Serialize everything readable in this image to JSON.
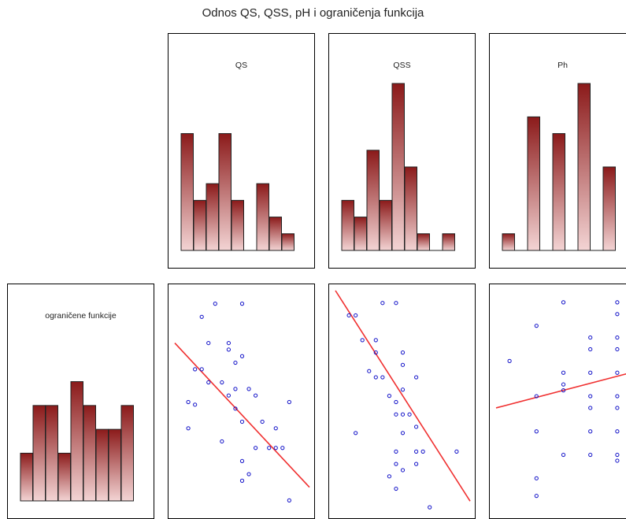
{
  "title": "Odnos QS, QSS, pH i ograničenja funkcija",
  "colors": {
    "bar_top": "#8b1a1a",
    "bar_bottom": "#f3d4d4",
    "points": "#1010c8",
    "fit_line": "#f03030"
  },
  "chart_data": [
    {
      "type": "bar",
      "title": "QS",
      "values": [
        7,
        3,
        4,
        7,
        3,
        0,
        4,
        2,
        1
      ],
      "ylim": [
        0,
        10
      ]
    },
    {
      "type": "bar",
      "title": "QSS",
      "values": [
        3,
        2,
        6,
        3,
        10,
        5,
        1,
        0,
        1
      ],
      "ylim": [
        0,
        10
      ]
    },
    {
      "type": "bar",
      "title": "Ph",
      "values": [
        1,
        0,
        8,
        0,
        7,
        0,
        10,
        0,
        5
      ],
      "ylim": [
        0,
        10
      ]
    },
    {
      "type": "bar",
      "title": "ograničene funkcije",
      "values": [
        2,
        4,
        4,
        2,
        5,
        4,
        3,
        3,
        4
      ],
      "ylim": [
        0,
        7
      ]
    },
    {
      "type": "scatter",
      "xvar": "QS",
      "yvar": "ograničene funkcije",
      "points": [
        [
          3,
          10
        ],
        [
          2,
          9
        ],
        [
          5,
          10
        ],
        [
          2.5,
          7
        ],
        [
          4,
          7
        ],
        [
          4,
          6.5
        ],
        [
          1.5,
          5
        ],
        [
          2,
          5
        ],
        [
          4.5,
          5.5
        ],
        [
          5,
          6
        ],
        [
          2.5,
          4
        ],
        [
          4,
          3
        ],
        [
          4.5,
          3.5
        ],
        [
          5.5,
          3.5
        ],
        [
          1,
          2.5
        ],
        [
          3.5,
          4
        ],
        [
          6,
          3
        ],
        [
          1.5,
          2.3
        ],
        [
          5,
          1
        ],
        [
          6.5,
          1
        ],
        [
          4.5,
          2
        ],
        [
          8.5,
          2.5
        ],
        [
          1,
          0.5
        ],
        [
          7.5,
          0.5
        ],
        [
          3.5,
          -0.5
        ],
        [
          7,
          -1
        ],
        [
          6,
          -1
        ],
        [
          7.5,
          -1
        ],
        [
          8,
          -1
        ],
        [
          5,
          -2
        ],
        [
          5.5,
          -3
        ],
        [
          5,
          -3.5
        ],
        [
          8.5,
          -5
        ]
      ],
      "fit_line": [
        [
          0,
          7
        ],
        [
          10,
          -4
        ]
      ],
      "xlim": [
        0,
        10
      ],
      "ylim": [
        -6,
        11
      ]
    },
    {
      "type": "scatter",
      "xvar": "QSS",
      "yvar": "ograničene funkcije",
      "points": [
        [
          1,
          10
        ],
        [
          1.5,
          10
        ],
        [
          3.5,
          11
        ],
        [
          4.5,
          11
        ],
        [
          2,
          8
        ],
        [
          3,
          8
        ],
        [
          3,
          7
        ],
        [
          5,
          7
        ],
        [
          5,
          6
        ],
        [
          2.5,
          5.5
        ],
        [
          3,
          5
        ],
        [
          3.5,
          5
        ],
        [
          6,
          5
        ],
        [
          5,
          4
        ],
        [
          4,
          3.5
        ],
        [
          4.5,
          3
        ],
        [
          5,
          2
        ],
        [
          4.5,
          2
        ],
        [
          5.5,
          2
        ],
        [
          1.5,
          0.5
        ],
        [
          5,
          0.5
        ],
        [
          6,
          1
        ],
        [
          4.5,
          -1
        ],
        [
          6,
          -1
        ],
        [
          6.5,
          -1
        ],
        [
          9,
          -1
        ],
        [
          5,
          -2.5
        ],
        [
          4.5,
          -2
        ],
        [
          6,
          -2
        ],
        [
          4,
          -3
        ],
        [
          4.5,
          -4
        ],
        [
          7,
          -5.5
        ]
      ],
      "fit_line": [
        [
          0,
          12
        ],
        [
          10,
          -5
        ]
      ],
      "xlim": [
        0,
        10
      ],
      "ylim": [
        -6,
        12
      ]
    },
    {
      "type": "scatter",
      "xvar": "Ph",
      "yvar": "ograničene funkcije",
      "points": [
        [
          5,
          12
        ],
        [
          9,
          12
        ],
        [
          9,
          11
        ],
        [
          3,
          10
        ],
        [
          7,
          9
        ],
        [
          9,
          9
        ],
        [
          7,
          8
        ],
        [
          9,
          8
        ],
        [
          1,
          7
        ],
        [
          5,
          6
        ],
        [
          7,
          6
        ],
        [
          9,
          6
        ],
        [
          5,
          5
        ],
        [
          3,
          4
        ],
        [
          5,
          4.5
        ],
        [
          7,
          4
        ],
        [
          9,
          4
        ],
        [
          7,
          3
        ],
        [
          9,
          3
        ],
        [
          3,
          1
        ],
        [
          7,
          1
        ],
        [
          9,
          1
        ],
        [
          5,
          -1
        ],
        [
          7,
          -1
        ],
        [
          9,
          -1
        ],
        [
          9,
          -1.5
        ],
        [
          3,
          -3
        ],
        [
          3,
          -4.5
        ]
      ],
      "fit_line": [
        [
          0,
          3
        ],
        [
          10,
          6
        ]
      ],
      "xlim": [
        0,
        10
      ],
      "ylim": [
        -6,
        13
      ]
    }
  ]
}
